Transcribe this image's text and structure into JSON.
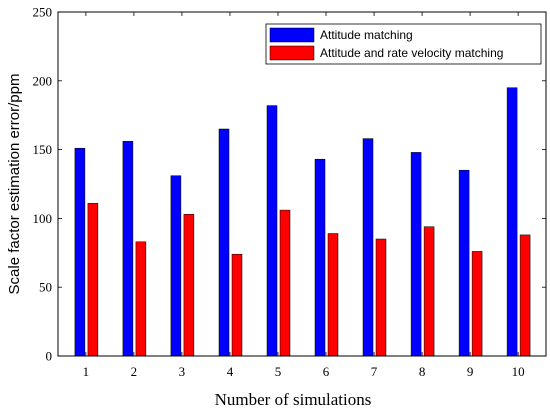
{
  "chart_data": {
    "type": "bar",
    "title": "",
    "xlabel": "Number of simulations",
    "ylabel": "Scale factor estimation error/ppm",
    "categories": [
      "1",
      "2",
      "3",
      "4",
      "5",
      "6",
      "7",
      "8",
      "9",
      "10"
    ],
    "ylim": [
      0,
      250
    ],
    "yticks": [
      "0",
      "50",
      "100",
      "150",
      "200",
      "250"
    ],
    "grid": false,
    "legend_position": "top-right",
    "series": [
      {
        "name": "Attitude matching",
        "color": "#0000ff",
        "values": [
          151,
          156,
          131,
          165,
          182,
          143,
          158,
          148,
          135,
          195
        ]
      },
      {
        "name": "Attitude and rate velocity matching",
        "color": "#ff0000",
        "values": [
          111,
          83,
          103,
          74,
          106,
          89,
          85,
          94,
          76,
          88
        ]
      }
    ]
  }
}
